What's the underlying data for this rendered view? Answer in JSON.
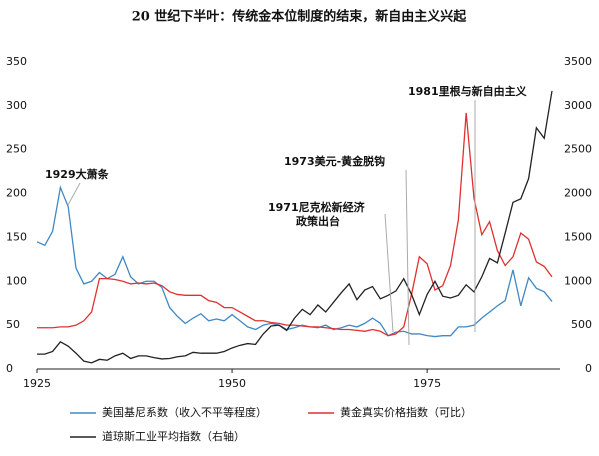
{
  "chart_data": {
    "type": "line",
    "title": "20 世纪下半叶：传统金本位制度的结束，新自由主义兴起",
    "x": [
      1925,
      1926,
      1927,
      1928,
      1929,
      1930,
      1931,
      1932,
      1933,
      1934,
      1935,
      1936,
      1937,
      1938,
      1939,
      1940,
      1941,
      1942,
      1943,
      1944,
      1945,
      1946,
      1947,
      1948,
      1949,
      1950,
      1951,
      1952,
      1953,
      1954,
      1955,
      1956,
      1957,
      1958,
      1959,
      1960,
      1961,
      1962,
      1963,
      1964,
      1965,
      1966,
      1967,
      1968,
      1969,
      1970,
      1971,
      1972,
      1973,
      1974,
      1975,
      1976,
      1977,
      1978,
      1979,
      1980,
      1981,
      1982,
      1983,
      1984,
      1985,
      1986,
      1987,
      1988,
      1989,
      1990,
      1991
    ],
    "xlim": [
      1925,
      1991
    ],
    "xticks": [
      1925,
      1950,
      1975
    ],
    "ylim": [
      0,
      350
    ],
    "yticks": [
      0,
      50,
      100,
      150,
      200,
      250,
      300,
      350
    ],
    "y2lim": [
      0,
      3500
    ],
    "y2ticks": [
      0,
      500,
      1000,
      1500,
      2000,
      2500,
      3000,
      3500
    ],
    "series": [
      {
        "name": "美国基尼系数（收入不平等程度）",
        "color": "#3f88c5",
        "values": [
          145,
          141,
          157,
          207,
          185,
          115,
          97,
          100,
          110,
          103,
          108,
          128,
          105,
          97,
          100,
          100,
          93,
          70,
          60,
          52,
          58,
          63,
          55,
          57,
          55,
          62,
          55,
          48,
          45,
          50,
          52,
          50,
          45,
          47,
          50,
          48,
          47,
          50,
          45,
          47,
          50,
          48,
          52,
          58,
          52,
          38,
          42,
          43,
          40,
          40,
          38,
          37,
          38,
          38,
          48,
          48,
          50,
          58,
          65,
          72,
          78,
          113,
          72,
          104,
          92,
          88,
          77
        ]
      },
      {
        "name": "黄金真实价格指数（可比）",
        "color": "#e03030",
        "values": [
          47,
          47,
          47,
          48,
          48,
          50,
          55,
          65,
          103,
          103,
          102,
          100,
          97,
          98,
          97,
          98,
          95,
          88,
          85,
          84,
          84,
          84,
          78,
          76,
          70,
          70,
          65,
          60,
          55,
          55,
          53,
          52,
          50,
          50,
          49,
          48,
          48,
          47,
          46,
          45,
          45,
          44,
          43,
          45,
          43,
          38,
          40,
          48,
          85,
          128,
          120,
          90,
          95,
          118,
          170,
          292,
          195,
          153,
          168,
          135,
          118,
          128,
          155,
          148,
          122,
          117,
          105
        ]
      },
      {
        "name": "道琼斯工业平均指数（右轴）",
        "color": "#222222",
        "axis": "y2",
        "values": [
          170,
          170,
          200,
          310,
          260,
          180,
          90,
          70,
          110,
          100,
          150,
          180,
          120,
          150,
          150,
          130,
          115,
          120,
          140,
          150,
          190,
          180,
          180,
          180,
          200,
          240,
          270,
          290,
          280,
          400,
          490,
          500,
          440,
          580,
          680,
          620,
          730,
          650,
          760,
          870,
          970,
          790,
          900,
          940,
          800,
          840,
          890,
          1030,
          850,
          620,
          850,
          1000,
          830,
          810,
          840,
          960,
          880,
          1050,
          1260,
          1210,
          1550,
          1900,
          1940,
          2170,
          2750,
          2630,
          3170
        ]
      }
    ],
    "annotations": [
      {
        "lines": [
          "1929大萧条"
        ]
      },
      {
        "lines": [
          "1971尼克松新经济",
          "政策出台"
        ]
      },
      {
        "lines": [
          "1973美元-黄金脱钩"
        ]
      },
      {
        "lines": [
          "1981里根与新自由主义"
        ]
      }
    ]
  }
}
